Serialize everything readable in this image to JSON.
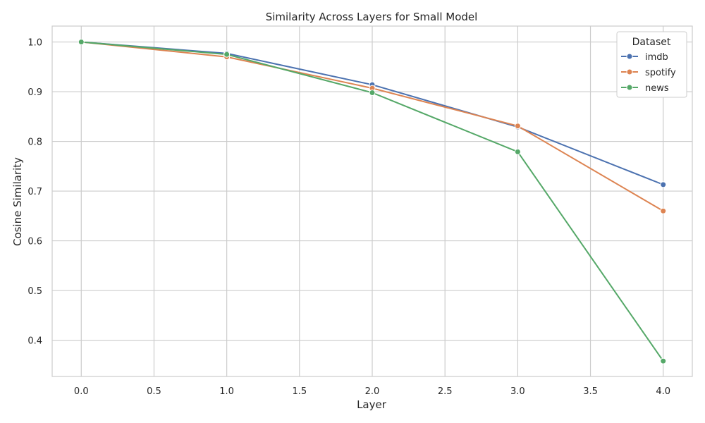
{
  "chart_data": {
    "type": "line",
    "title": "Similarity Across Layers for Small Model",
    "xlabel": "Layer",
    "ylabel": "Cosine Similarity",
    "xlim": [
      -0.2,
      4.2
    ],
    "ylim": [
      0.327,
      1.032
    ],
    "xticks": [
      "0.0",
      "0.5",
      "1.0",
      "1.5",
      "2.0",
      "2.5",
      "3.0",
      "3.5",
      "4.0"
    ],
    "yticks": [
      "0.4",
      "0.5",
      "0.6",
      "0.7",
      "0.8",
      "0.9",
      "1.0"
    ],
    "grid": true,
    "legend": {
      "title": "Dataset",
      "position": "top-right"
    },
    "x": [
      0,
      1,
      2,
      3,
      4
    ],
    "series": [
      {
        "name": "imdb",
        "color": "#4c72b0",
        "values": [
          1.0,
          0.977,
          0.914,
          0.829,
          0.713
        ]
      },
      {
        "name": "spotify",
        "color": "#dd8452",
        "values": [
          1.0,
          0.97,
          0.907,
          0.831,
          0.66
        ]
      },
      {
        "name": "news",
        "color": "#55a868",
        "values": [
          1.0,
          0.975,
          0.898,
          0.779,
          0.358
        ]
      }
    ]
  }
}
